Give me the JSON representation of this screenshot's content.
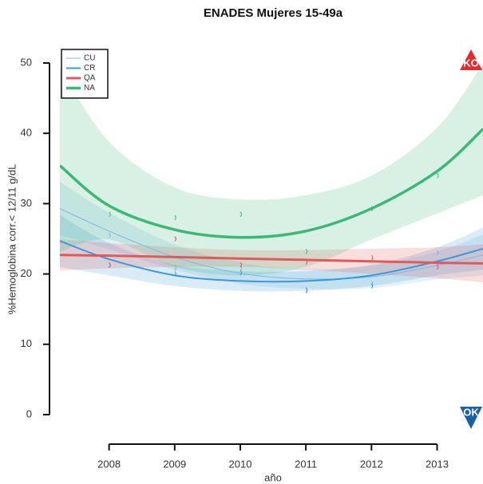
{
  "chart_data": {
    "type": "line",
    "title": "ENADES Mujeres 15-49a",
    "x_label": "año",
    "y_label": "%Hemoglobina corr.< 12/11 g/dL",
    "x": [
      2007.25,
      2008,
      2009,
      2010,
      2011,
      2012,
      2013,
      2013.7
    ],
    "points_x": [
      2008,
      2009,
      2010,
      2011,
      2012,
      2013
    ],
    "series": [
      {
        "name": "CU",
        "color": "#7fb8e0",
        "line_width": 1,
        "values": [
          29.3,
          26.1,
          22.4,
          20.1,
          19.3,
          19.6,
          21.2,
          22.7
        ],
        "lower": [
          25.5,
          23.5,
          20.6,
          18.6,
          17.9,
          18.0,
          19.2,
          19.8
        ],
        "upper": [
          33.1,
          28.7,
          24.2,
          21.6,
          20.7,
          21.2,
          23.2,
          25.6
        ],
        "points": [
          25.5,
          20.8,
          20.8,
          17.8,
          18.7,
          23.0
        ]
      },
      {
        "name": "CR",
        "color": "#3a9ad9",
        "line_width": 2,
        "values": [
          24.7,
          22.1,
          19.8,
          19.0,
          19.0,
          19.8,
          21.8,
          23.6
        ],
        "lower": [
          21.0,
          19.8,
          18.3,
          17.6,
          17.6,
          18.3,
          19.8,
          20.6
        ],
        "upper": [
          28.4,
          24.4,
          21.3,
          20.4,
          20.4,
          21.3,
          23.8,
          26.6
        ],
        "points": [
          21.3,
          20.0,
          20.2,
          17.6,
          18.3,
          21.6
        ]
      },
      {
        "name": "QA",
        "color": "#e05a5a",
        "line_width": 3,
        "values": [
          22.7,
          22.6,
          22.4,
          22.2,
          22.0,
          21.8,
          21.6,
          21.5
        ],
        "lower": [
          20.5,
          20.8,
          21.0,
          21.0,
          20.6,
          20.0,
          19.4,
          18.8
        ],
        "upper": [
          24.9,
          24.4,
          23.8,
          23.4,
          23.4,
          23.6,
          23.8,
          24.2
        ],
        "points": [
          21.2,
          25.0,
          21.3,
          21.7,
          22.3,
          21.0
        ]
      },
      {
        "name": "NA",
        "color": "#3cb878",
        "line_width": 3.5,
        "values": [
          35.4,
          29.7,
          26.3,
          25.2,
          26.1,
          29.3,
          34.6,
          40.6
        ],
        "lower": [
          23.2,
          24.9,
          21.0,
          19.8,
          21.0,
          24.9,
          28.6,
          31.2
        ],
        "upper": [
          49.3,
          38.8,
          32.3,
          30.6,
          31.2,
          34.0,
          40.8,
          49.9
        ],
        "points": [
          28.5,
          28.0,
          28.5,
          23.2,
          29.3,
          34.0
        ]
      }
    ],
    "xlim": [
      2007.25,
      2013.7
    ],
    "ylim": [
      0,
      50
    ],
    "xticks": [
      2008,
      2009,
      2010,
      2011,
      2012,
      2013
    ],
    "yticks": [
      0,
      10,
      20,
      30,
      40,
      50
    ],
    "legend": "top-left",
    "badges": {
      "top": "KO",
      "bottom": "OK"
    }
  }
}
